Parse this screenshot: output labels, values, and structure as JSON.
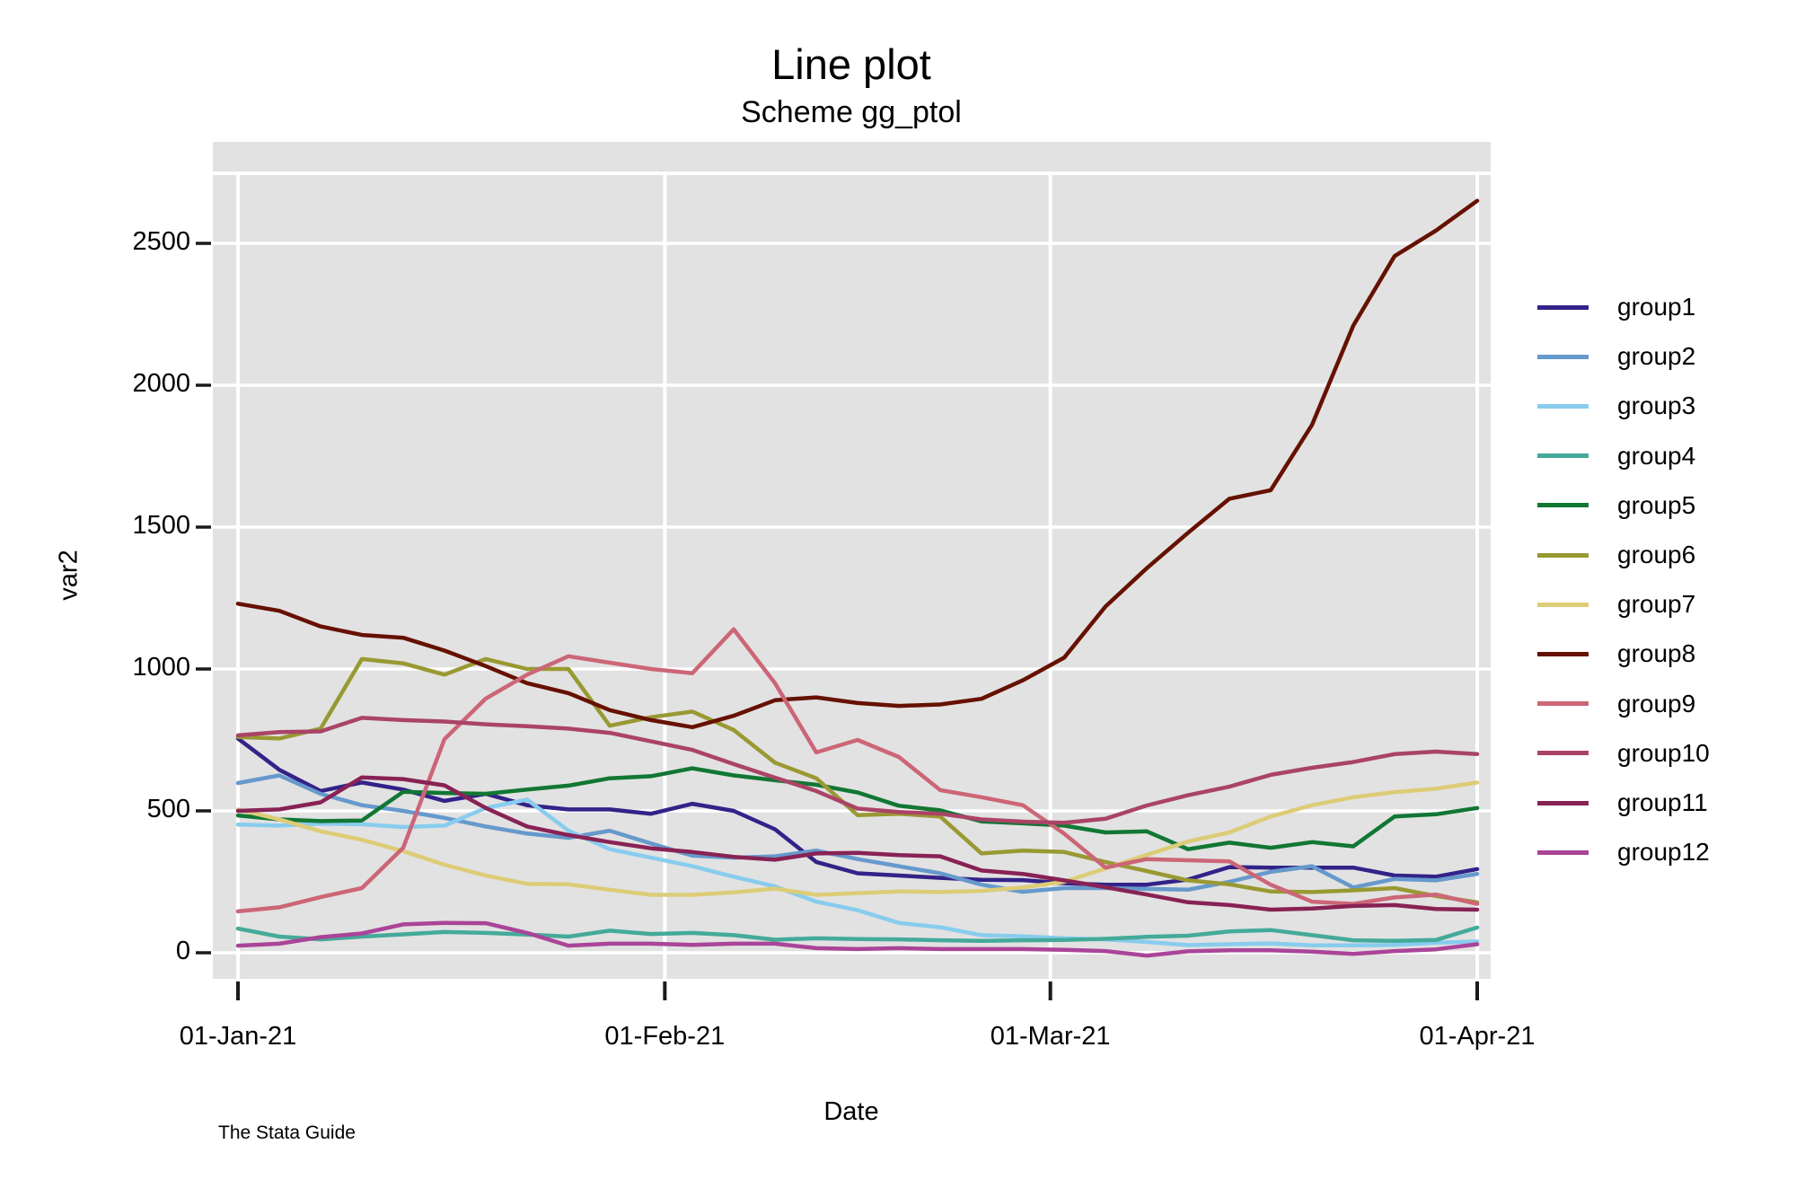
{
  "title": "Line plot",
  "subtitle": "Scheme gg_ptol",
  "caption": "The Stata Guide",
  "chart_data": {
    "type": "line",
    "title": "Line plot",
    "subtitle": "Scheme gg_ptol",
    "xlabel": "Date",
    "ylabel": "var2",
    "grid": true,
    "legend_position": "right",
    "plot_bg": "#E2E2E2",
    "grid_color": "#FFFFFF",
    "tick_color": "#1A1A1A",
    "text_color": "#000000",
    "y_ticks": [
      0,
      500,
      1000,
      1500,
      2000,
      2500
    ],
    "ylim_shown": [
      0,
      2500
    ],
    "x_tick_labels": [
      "01-Jan-21",
      "01-Feb-21",
      "01-Mar-21",
      "01-Apr-21"
    ],
    "x_tick_days": [
      0,
      31,
      59,
      90
    ],
    "x_range_days": [
      0,
      90
    ],
    "x_days": [
      0,
      3,
      6,
      9,
      12,
      15,
      18,
      21,
      24,
      27,
      30,
      33,
      36,
      39,
      42,
      45,
      48,
      51,
      54,
      57,
      60,
      63,
      66,
      69,
      72,
      75,
      78,
      81,
      84,
      87,
      90
    ],
    "series": [
      {
        "name": "group1",
        "color": "#332288",
        "values": [
          755,
          645,
          570,
          600,
          575,
          535,
          560,
          520,
          505,
          505,
          490,
          525,
          500,
          435,
          320,
          280,
          272,
          264,
          257,
          256,
          245,
          240,
          240,
          258,
          302,
          300,
          300,
          300,
          272,
          268,
          295
        ]
      },
      {
        "name": "group2",
        "color": "#6699CC",
        "values": [
          598,
          625,
          560,
          520,
          500,
          475,
          445,
          420,
          405,
          430,
          385,
          342,
          335,
          340,
          360,
          330,
          305,
          280,
          240,
          215,
          228,
          228,
          225,
          222,
          250,
          285,
          305,
          230,
          260,
          255,
          278
        ]
      },
      {
        "name": "group3",
        "color": "#88CCEE",
        "values": [
          452,
          448,
          455,
          453,
          443,
          448,
          510,
          540,
          430,
          365,
          335,
          305,
          268,
          234,
          180,
          150,
          105,
          90,
          62,
          58,
          51,
          47,
          38,
          27,
          30,
          33,
          26,
          26,
          28,
          35,
          40
        ]
      },
      {
        "name": "group4",
        "color": "#44AA99",
        "values": [
          85,
          57,
          47,
          57,
          65,
          73,
          70,
          64,
          57,
          78,
          66,
          70,
          62,
          46,
          51,
          48,
          47,
          44,
          42,
          44,
          45,
          49,
          56,
          60,
          75,
          80,
          62,
          44,
          42,
          45,
          89
        ]
      },
      {
        "name": "group5",
        "color": "#117733",
        "values": [
          484,
          470,
          464,
          466,
          567,
          563,
          560,
          575,
          589,
          615,
          622,
          650,
          625,
          608,
          592,
          565,
          518,
          502,
          463,
          456,
          448,
          424,
          428,
          365,
          388,
          370,
          390,
          375,
          480,
          488,
          510
        ]
      },
      {
        "name": "group6",
        "color": "#999933",
        "values": [
          760,
          755,
          790,
          1035,
          1020,
          980,
          1035,
          1000,
          1000,
          800,
          830,
          850,
          785,
          670,
          615,
          485,
          490,
          480,
          350,
          360,
          355,
          320,
          288,
          255,
          241,
          216,
          214,
          220,
          228,
          200,
          178
        ]
      },
      {
        "name": "group7",
        "color": "#DDCC77",
        "values": [
          505,
          470,
          428,
          398,
          358,
          310,
          272,
          243,
          241,
          222,
          204,
          204,
          213,
          226,
          204,
          210,
          216,
          214,
          218,
          230,
          250,
          297,
          345,
          392,
          424,
          480,
          520,
          548,
          566,
          578,
          600
        ]
      },
      {
        "name": "group8",
        "color": "#661100",
        "values": [
          1230,
          1205,
          1150,
          1120,
          1110,
          1065,
          1010,
          950,
          915,
          855,
          820,
          795,
          835,
          890,
          900,
          880,
          870,
          875,
          895,
          960,
          1040,
          1220,
          1355,
          1480,
          1600,
          1630,
          1860,
          2210,
          2455,
          2545,
          2650
        ]
      },
      {
        "name": "group9",
        "color": "#CC6677",
        "values": [
          146,
          160,
          196,
          228,
          370,
          753,
          896,
          980,
          1045,
          1022,
          1000,
          985,
          1140,
          950,
          706,
          750,
          690,
          573,
          548,
          520,
          420,
          300,
          330,
          326,
          322,
          240,
          180,
          172,
          195,
          205,
          172
        ]
      },
      {
        "name": "group10",
        "color": "#AA4466",
        "values": [
          766,
          778,
          780,
          828,
          820,
          815,
          805,
          798,
          790,
          775,
          745,
          715,
          665,
          617,
          570,
          508,
          496,
          490,
          470,
          462,
          458,
          472,
          519,
          555,
          585,
          627,
          652,
          672,
          700,
          709,
          700
        ]
      },
      {
        "name": "group11",
        "color": "#882255",
        "values": [
          500,
          505,
          530,
          618,
          612,
          590,
          510,
          445,
          415,
          390,
          368,
          355,
          338,
          328,
          350,
          352,
          344,
          340,
          290,
          278,
          255,
          231,
          205,
          178,
          168,
          152,
          156,
          165,
          168,
          154,
          152
        ]
      },
      {
        "name": "group12",
        "color": "#AA4499",
        "values": [
          25,
          32,
          55,
          68,
          100,
          105,
          104,
          70,
          25,
          32,
          32,
          28,
          32,
          32,
          16,
          13,
          16,
          13,
          13,
          13,
          10,
          6,
          -10,
          5,
          9,
          9,
          4,
          -4,
          6,
          12,
          30
        ]
      }
    ]
  }
}
